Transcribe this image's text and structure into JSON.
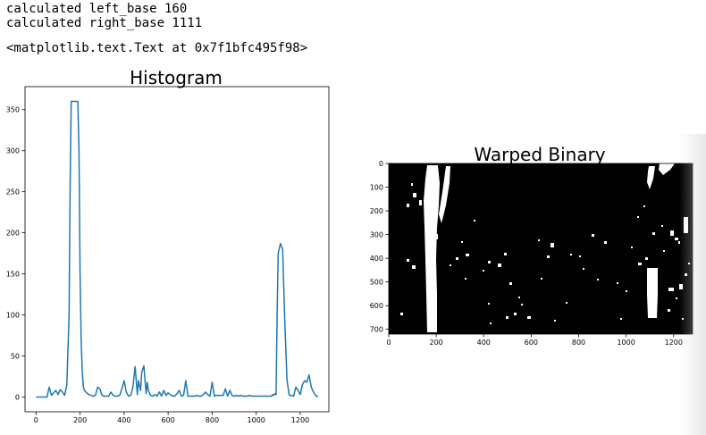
{
  "output": {
    "line1": "calculated left_base 160",
    "line2": "calculated right_base 1111",
    "line3": "<matplotlib.text.Text at 0x7f1bfc495f98>"
  },
  "colors": {
    "line": "#1f77b4",
    "image_background": "#000000",
    "image_foreground": "#ffffff"
  },
  "chart_data": [
    {
      "type": "line",
      "title": "Histogram",
      "xlabel": "",
      "ylabel": "",
      "xlim": [
        -50,
        1330
      ],
      "ylim": [
        -18,
        378
      ],
      "xticks": [
        0,
        200,
        400,
        600,
        800,
        1000,
        1200
      ],
      "yticks": [
        0,
        50,
        100,
        150,
        200,
        250,
        300,
        350
      ],
      "grid": false,
      "series": [
        {
          "x": [
            0,
            20,
            40,
            50,
            60,
            70,
            80,
            90,
            100,
            110,
            120,
            130,
            140,
            150,
            155,
            160,
            165,
            170,
            180,
            190,
            195,
            200,
            205,
            210,
            215,
            220,
            230,
            240,
            250,
            260,
            270,
            280,
            290,
            300,
            310,
            320,
            330,
            340,
            350,
            360,
            370,
            380,
            390,
            400,
            410,
            420,
            430,
            440,
            450,
            460,
            465,
            470,
            475,
            480,
            490,
            500,
            505,
            510,
            520,
            530,
            540,
            550,
            560,
            570,
            580,
            590,
            600,
            610,
            620,
            630,
            640,
            650,
            660,
            670,
            680,
            690,
            700,
            710,
            720,
            730,
            740,
            750,
            760,
            770,
            780,
            790,
            800,
            810,
            820,
            830,
            840,
            850,
            860,
            870,
            880,
            890,
            900,
            910,
            920,
            930,
            940,
            950,
            960,
            970,
            980,
            990,
            1000,
            1010,
            1020,
            1030,
            1040,
            1050,
            1060,
            1070,
            1075,
            1080,
            1085,
            1090,
            1095,
            1100,
            1110,
            1120,
            1130,
            1140,
            1150,
            1160,
            1170,
            1180,
            1190,
            1200,
            1210,
            1220,
            1230,
            1240,
            1250,
            1260,
            1270,
            1280
          ],
          "y": [
            0,
            0,
            0,
            0,
            12,
            2,
            5,
            8,
            3,
            9,
            6,
            2,
            15,
            100,
            260,
            360,
            360,
            360,
            360,
            360,
            300,
            150,
            70,
            30,
            12,
            8,
            5,
            3,
            2,
            1,
            2,
            12,
            10,
            2,
            1,
            1,
            1,
            6,
            2,
            1,
            1,
            2,
            10,
            20,
            6,
            1,
            2,
            12,
            37,
            3,
            20,
            14,
            8,
            30,
            38,
            4,
            18,
            8,
            2,
            1,
            3,
            1,
            6,
            1,
            8,
            2,
            5,
            3,
            1,
            1,
            4,
            8,
            1,
            2,
            20,
            1,
            1,
            1,
            1,
            2,
            1,
            1,
            3,
            6,
            3,
            1,
            18,
            1,
            2,
            2,
            2,
            2,
            10,
            1,
            8,
            2,
            1,
            2,
            1,
            2,
            1,
            1,
            1,
            2,
            1,
            1,
            1,
            1,
            1,
            1,
            1,
            1,
            1,
            1,
            3,
            2,
            4,
            3,
            100,
            175,
            187,
            180,
            90,
            20,
            2,
            2,
            1,
            12,
            8,
            3,
            15,
            20,
            18,
            27,
            12,
            6,
            2,
            0
          ]
        }
      ]
    },
    {
      "type": "image",
      "title": "Warped Binary",
      "xlim": [
        0,
        1280
      ],
      "ylim": [
        720,
        0
      ],
      "xticks": [
        0,
        200,
        400,
        600,
        800,
        1000,
        1200
      ],
      "yticks": [
        0,
        100,
        200,
        300,
        400,
        500,
        600,
        700
      ]
    }
  ]
}
